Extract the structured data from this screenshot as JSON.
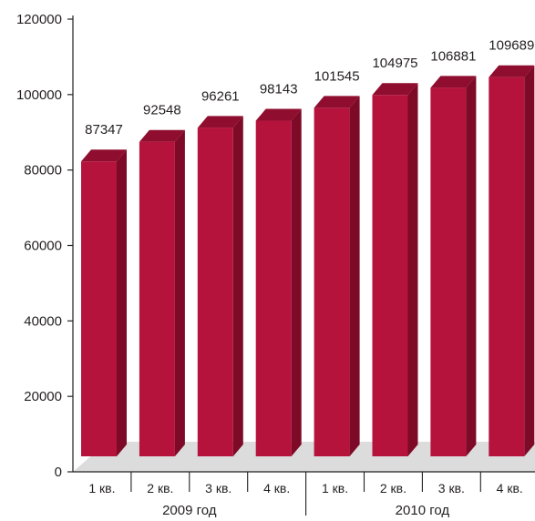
{
  "chart_data": {
    "type": "bar",
    "title": "",
    "xlabel": "",
    "ylabel": "",
    "ylim": [
      0,
      120000
    ],
    "yticks": [
      0,
      20000,
      40000,
      60000,
      80000,
      100000,
      120000
    ],
    "grid": false,
    "categories": [
      "1 кв.",
      "2 кв.",
      "3 кв.",
      "4 кв.",
      "1 кв.",
      "2 кв.",
      "3 кв.",
      "4 кв."
    ],
    "groups": [
      {
        "label": "2009 год",
        "span": [
          0,
          3
        ]
      },
      {
        "label": "2010 год",
        "span": [
          4,
          7
        ]
      }
    ],
    "series": [
      {
        "values": [
          87347,
          92548,
          96261,
          98143,
          101545,
          104975,
          106881,
          109689
        ]
      }
    ],
    "colors": {
      "bar_front": "#b5123c",
      "bar_side": "#7d0a26",
      "bar_top": "#8f0d2e",
      "floor": "#dcdcdc",
      "axis": "#231f20"
    }
  }
}
